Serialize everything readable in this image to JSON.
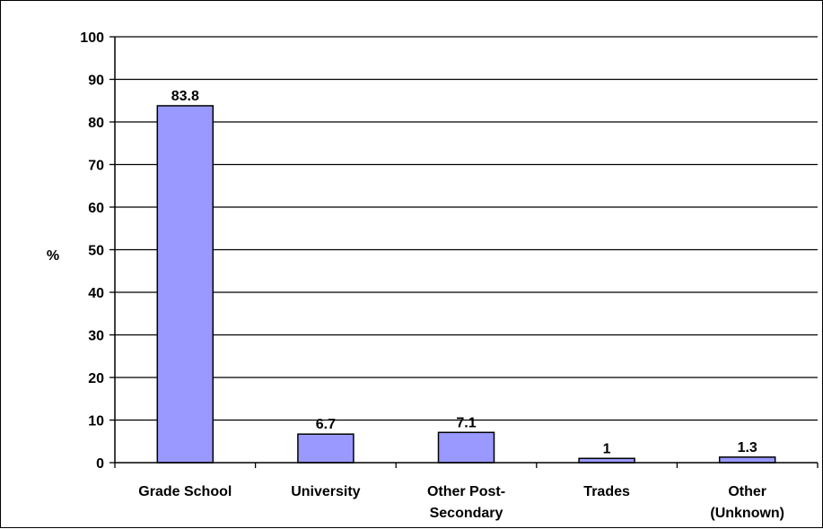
{
  "chart_data": {
    "type": "bar",
    "ylabel": "%",
    "ylim": [
      0,
      100
    ],
    "yticks": [
      "0",
      "10",
      "20",
      "30",
      "40",
      "50",
      "60",
      "70",
      "80",
      "90",
      "100"
    ],
    "categories": [
      [
        "Grade School"
      ],
      [
        "University"
      ],
      [
        "Other Post-",
        "Secondary"
      ],
      [
        "Trades"
      ],
      [
        "Other",
        "(Unknown)"
      ]
    ],
    "values": [
      83.8,
      6.7,
      7.1,
      1,
      1.3
    ],
    "data_labels": [
      "83.8",
      "6.7",
      "7.1",
      "1",
      "1.3"
    ],
    "grid": true,
    "bar_color": "#9999ff"
  }
}
